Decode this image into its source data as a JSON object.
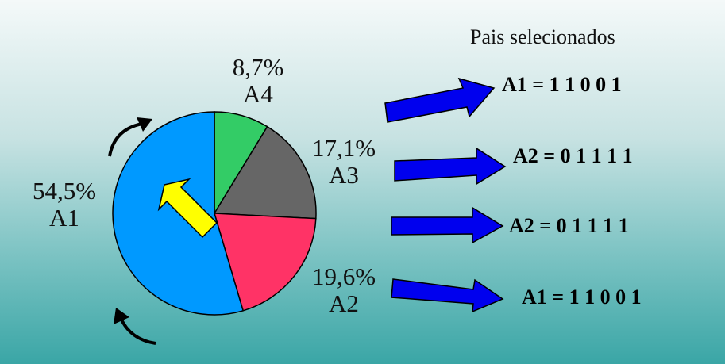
{
  "title": "Pais selecionados",
  "slices": [
    {
      "id": "A1",
      "percent_label": "54,5%",
      "name_label": "A1",
      "value": 54.5,
      "color": "#0099ff"
    },
    {
      "id": "A4",
      "percent_label": "8,7%",
      "name_label": "A4",
      "value": 8.7,
      "color": "#33cc66"
    },
    {
      "id": "A3",
      "percent_label": "17,1%",
      "name_label": "A3",
      "value": 17.1,
      "color": "#666666"
    },
    {
      "id": "A2",
      "percent_label": "19,6%",
      "name_label": "A2",
      "value": 19.6,
      "color": "#ff3366"
    }
  ],
  "results": [
    {
      "text": "A1 = 1 1 0 0 1"
    },
    {
      "text": "A2 = 0 1 1 1 1"
    },
    {
      "text": "A2 = 0 1 1 1 1"
    },
    {
      "text": "A1 = 1 1 0 0 1"
    }
  ],
  "colors": {
    "arrow_fill": "#0000ee",
    "pointer_fill": "#ffff00",
    "outline": "#000000"
  },
  "icons": [
    "rotation-arrow-icon",
    "pointer-arrow-icon",
    "selection-arrow-icon"
  ]
}
